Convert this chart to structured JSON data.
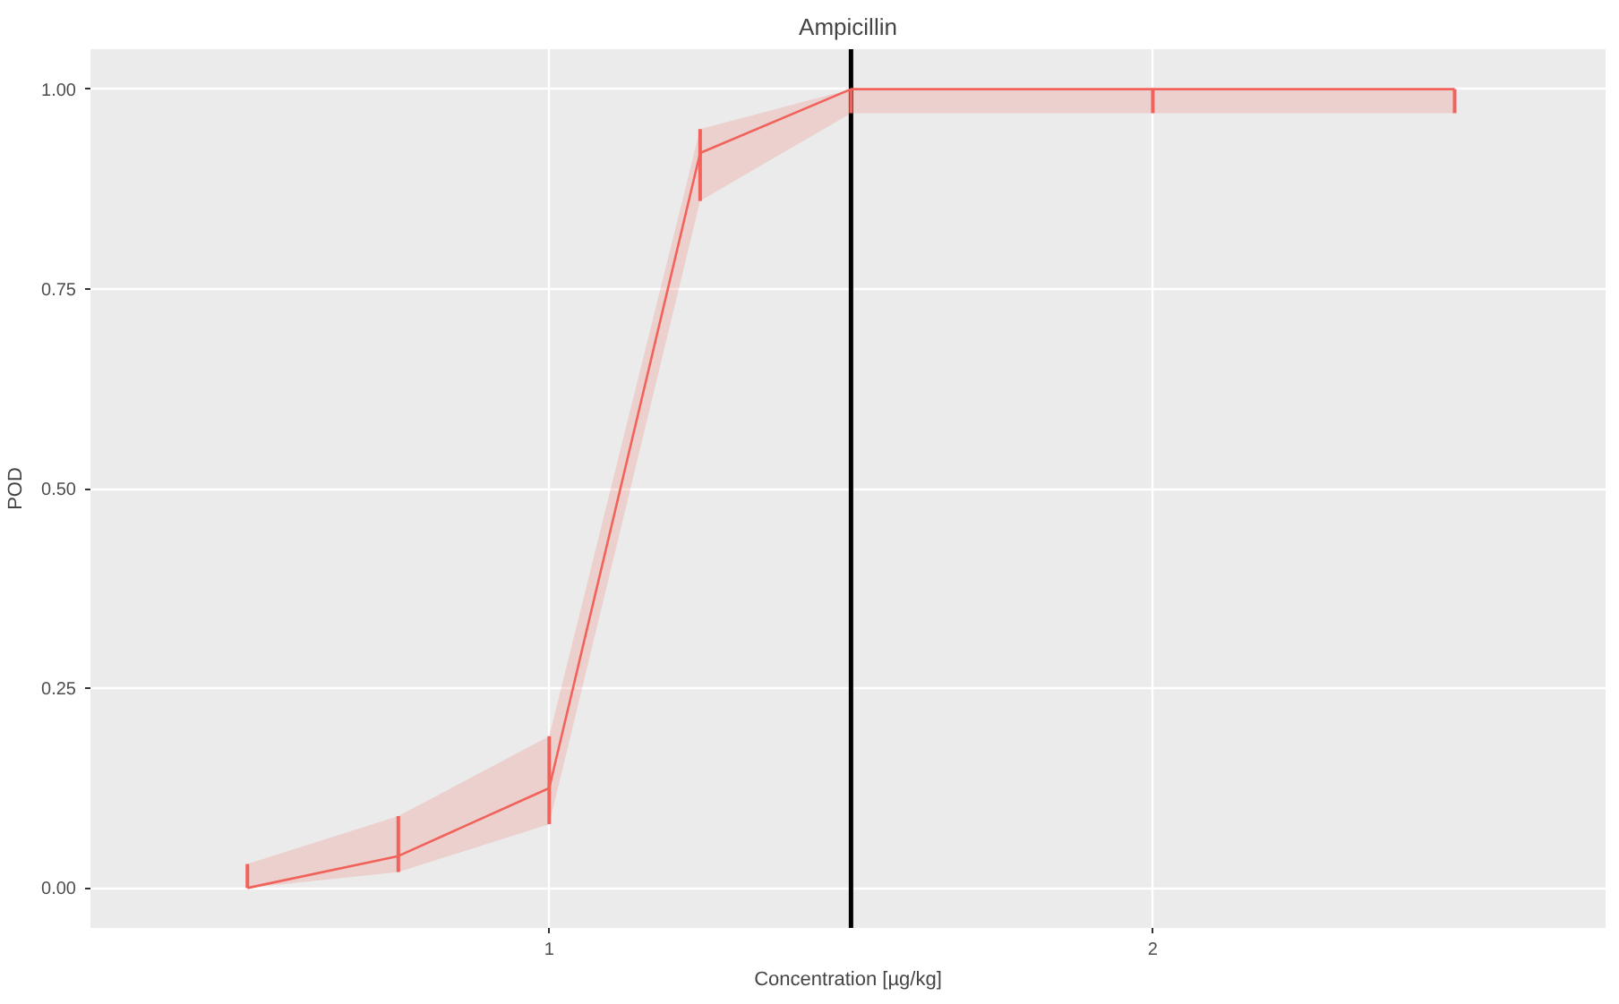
{
  "chart_data": {
    "type": "line",
    "title": "Ampicillin",
    "xlabel": "Concentration [µg/kg]",
    "ylabel": "POD",
    "x": [
      0.5,
      0.75,
      1,
      1.25,
      1.5,
      2,
      2.5
    ],
    "series": [
      {
        "color": "#f0625a",
        "values": [
          0,
          0.04,
          0.125,
          0.92,
          1,
          1,
          1
        ],
        "lower": [
          0,
          0.02,
          0.08,
          0.86,
          0.97,
          0.97,
          0.97
        ],
        "upper": [
          0.03,
          0.09,
          0.19,
          0.95,
          1,
          1,
          1
        ],
        "errors": [
          [
            0,
            0.03
          ],
          [
            0.02,
            0.09
          ],
          [
            0.08,
            0.19
          ],
          [
            0.86,
            0.95
          ],
          [
            0.97,
            1
          ],
          [
            0.97,
            1
          ],
          [
            0.97,
            1
          ]
        ]
      }
    ],
    "xlim": [
      0.24,
      2.75
    ],
    "ylim": [
      -0.05,
      1.05
    ],
    "xticks": [
      1,
      2
    ],
    "yticks": [
      {
        "value": 0,
        "label": "0.00"
      },
      {
        "value": 0.25,
        "label": "0.25"
      },
      {
        "value": 0.5,
        "label": "0.50"
      },
      {
        "value": 0.75,
        "label": "0.75"
      },
      {
        "value": 1,
        "label": "1.00"
      }
    ],
    "ref_lines": [
      {
        "axis": "x",
        "value": 1.5,
        "label": null,
        "color": "#000000"
      }
    ],
    "grid": true,
    "marker": "none",
    "line_style": "solid"
  }
}
